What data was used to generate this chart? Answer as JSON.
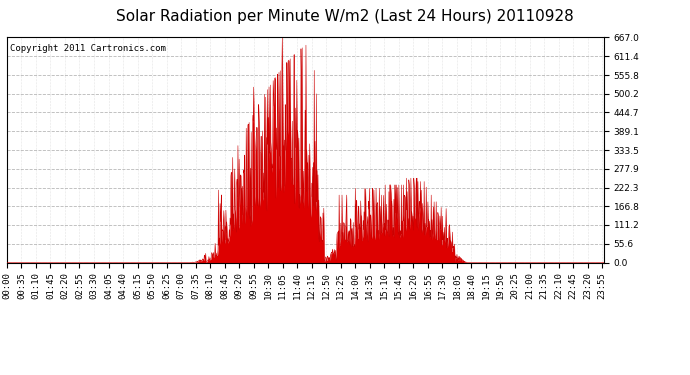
{
  "title": "Solar Radiation per Minute W/m2 (Last 24 Hours) 20110928",
  "copyright": "Copyright 2011 Cartronics.com",
  "background_color": "#ffffff",
  "plot_bg_color": "#ffffff",
  "line_color": "#cc0000",
  "fill_color": "#dd0000",
  "grid_color": "#999999",
  "ymin": 0.0,
  "ymax": 667.0,
  "yticks": [
    0.0,
    55.6,
    111.2,
    166.8,
    222.3,
    277.9,
    333.5,
    389.1,
    444.7,
    500.2,
    555.8,
    611.4,
    667.0
  ],
  "title_fontsize": 11,
  "tick_fontsize": 6.5,
  "copyright_fontsize": 6.5
}
